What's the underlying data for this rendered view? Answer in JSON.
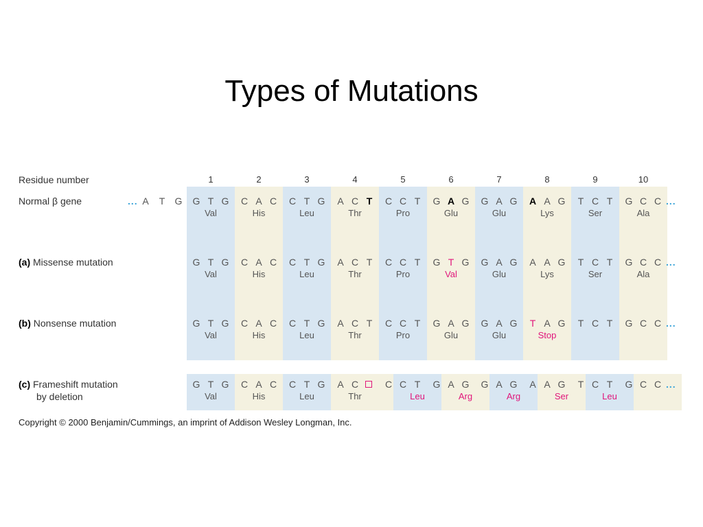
{
  "title": "Types of Mutations",
  "colors": {
    "blue_column": "#d8e6f2",
    "cream_column": "#f4f1e0",
    "mutation_highlight": "#e0157a",
    "continuation_dots": "#3aa3d8"
  },
  "residue_label": "Residue number",
  "residue_numbers": [
    "1",
    "2",
    "3",
    "4",
    "5",
    "6",
    "7",
    "8",
    "9",
    "10"
  ],
  "prefix": {
    "dots": "...",
    "bases": [
      "A",
      "T",
      "G"
    ]
  },
  "suffix_dots": "...",
  "rows": [
    {
      "id": "normal",
      "label_prefix": "",
      "label": "Normal β gene",
      "bases": [
        "G",
        "T",
        "G",
        "C",
        "A",
        "C",
        "C",
        "T",
        "G",
        "A",
        "C",
        "T",
        "C",
        "C",
        "T",
        "G",
        "A",
        "G",
        "G",
        "A",
        "G",
        "A",
        "A",
        "G",
        "T",
        "C",
        "T",
        "G",
        "C",
        "C"
      ],
      "bold": [
        11,
        16,
        21
      ],
      "highlight": [],
      "amino_acids": [
        "Val",
        "His",
        "Leu",
        "Thr",
        "Pro",
        "Glu",
        "Glu",
        "Lys",
        "Ser",
        "Ala"
      ],
      "aa_highlight": []
    },
    {
      "id": "missense",
      "label_prefix": "(a)",
      "label": "Missense mutation",
      "bases": [
        "G",
        "T",
        "G",
        "C",
        "A",
        "C",
        "C",
        "T",
        "G",
        "A",
        "C",
        "T",
        "C",
        "C",
        "T",
        "G",
        "T",
        "G",
        "G",
        "A",
        "G",
        "A",
        "A",
        "G",
        "T",
        "C",
        "T",
        "G",
        "C",
        "C"
      ],
      "bold": [],
      "highlight": [
        16
      ],
      "amino_acids": [
        "Val",
        "His",
        "Leu",
        "Thr",
        "Pro",
        "Val",
        "Glu",
        "Lys",
        "Ser",
        "Ala"
      ],
      "aa_highlight": [
        5
      ]
    },
    {
      "id": "nonsense",
      "label_prefix": "(b)",
      "label": "Nonsense mutation",
      "bases": [
        "G",
        "T",
        "G",
        "C",
        "A",
        "C",
        "C",
        "T",
        "G",
        "A",
        "C",
        "T",
        "C",
        "C",
        "T",
        "G",
        "A",
        "G",
        "G",
        "A",
        "G",
        "T",
        "A",
        "G",
        "T",
        "C",
        "T",
        "G",
        "C",
        "C"
      ],
      "bold": [],
      "highlight": [
        21
      ],
      "amino_acids": [
        "Val",
        "His",
        "Leu",
        "Thr",
        "Pro",
        "Glu",
        "Glu",
        "Stop",
        "",
        ""
      ],
      "aa_highlight": [
        7
      ]
    },
    {
      "id": "frameshift",
      "label_prefix": "(c)",
      "label": "Frameshift mutation",
      "label_line2": "by deletion",
      "bases": [
        "G",
        "T",
        "G",
        "C",
        "A",
        "C",
        "C",
        "T",
        "G",
        "A",
        "C",
        "□",
        "C",
        "C",
        "T",
        "G",
        "A",
        "G",
        "G",
        "A",
        "G",
        "A",
        "A",
        "G",
        "T",
        "C",
        "T",
        "G",
        "C",
        "C"
      ],
      "bold": [],
      "highlight": [],
      "deleted": [
        11
      ],
      "amino_acids": [
        "Val",
        "His",
        "Leu",
        "Thr",
        "Leu",
        "Arg",
        "Arg",
        "Ser",
        "Leu",
        ""
      ],
      "aa_highlight": [
        4,
        5,
        6,
        7,
        8
      ]
    }
  ],
  "copyright": "Copyright © 2000 Benjamin/Cummings, an imprint of Addison Wesley Longman, Inc."
}
